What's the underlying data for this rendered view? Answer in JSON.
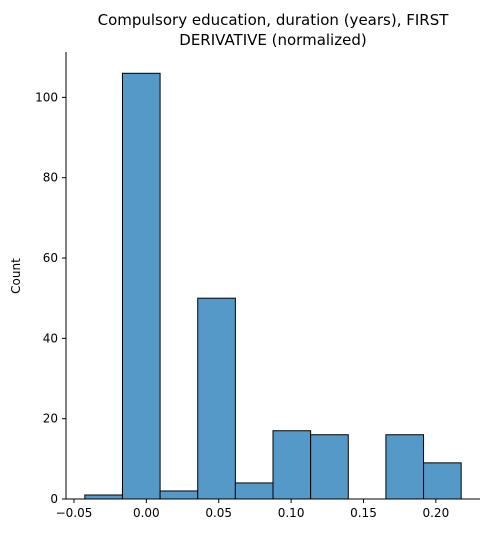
{
  "chart_data": {
    "type": "bar",
    "title_lines": [
      "Compulsory education, duration (years), FIRST",
      "DERIVATIVE (normalized)"
    ],
    "xlabel": "",
    "ylabel": "Count",
    "bins": [
      {
        "x0": -0.0425,
        "x1": -0.0165,
        "count": 1
      },
      {
        "x0": -0.0165,
        "x1": 0.0095,
        "count": 106
      },
      {
        "x0": 0.0095,
        "x1": 0.0355,
        "count": 2
      },
      {
        "x0": 0.0355,
        "x1": 0.0615,
        "count": 50
      },
      {
        "x0": 0.0615,
        "x1": 0.0875,
        "count": 4
      },
      {
        "x0": 0.0875,
        "x1": 0.1135,
        "count": 17
      },
      {
        "x0": 0.1135,
        "x1": 0.1395,
        "count": 16
      },
      {
        "x0": 0.1395,
        "x1": 0.1655,
        "count": 0
      },
      {
        "x0": 0.1655,
        "x1": 0.1915,
        "count": 16
      },
      {
        "x0": 0.1915,
        "x1": 0.2175,
        "count": 9
      }
    ],
    "x_ticks": [
      -0.05,
      0.0,
      0.05,
      0.1,
      0.15,
      0.2
    ],
    "x_tick_labels": [
      "−0.05",
      "0.00",
      "0.05",
      "0.10",
      "0.15",
      "0.20"
    ],
    "y_ticks": [
      0,
      20,
      40,
      60,
      80,
      100
    ],
    "y_tick_labels": [
      "0",
      "20",
      "40",
      "60",
      "80",
      "100"
    ],
    "xlim": [
      -0.0555,
      0.2305
    ],
    "ylim": [
      0,
      111.3
    ],
    "grid": false,
    "bar_color": "#5499c7"
  }
}
